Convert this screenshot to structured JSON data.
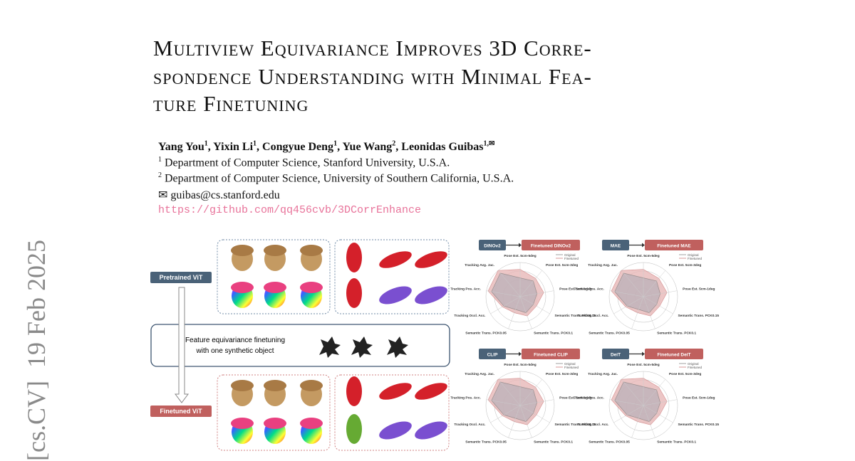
{
  "side_stamp": "[cs.CV]  19 Feb 2025",
  "title_lines": [
    "Multiview Equivariance Improves 3D Corre-",
    "spondence Understanding with Minimal Fea-",
    "ture Finetuning"
  ],
  "authors": [
    {
      "name": "Yang You",
      "sup": "1"
    },
    {
      "name": "Yixin Li",
      "sup": "1"
    },
    {
      "name": "Congyue Deng",
      "sup": "1"
    },
    {
      "name": "Yue Wang",
      "sup": "2"
    },
    {
      "name": "Leonidas Guibas",
      "sup": "1,✉"
    }
  ],
  "affiliations": [
    {
      "sup": "1",
      "text": "Department of Computer Science, Stanford University, U.S.A."
    },
    {
      "sup": "2",
      "text": "Department of Computer Science, University of Southern California, U.S.A."
    }
  ],
  "email": "✉ guibas@cs.stanford.edu",
  "url": "https://github.com/qq456cvb/3DCorrEnhance",
  "figure": {
    "pretrained_label": "Pretrained ViT",
    "finetuned_label": "Finetuned ViT",
    "middle_text": [
      "Feature equivariance finetuning",
      "with one synthetic object"
    ],
    "radar_axes": [
      "Pose Est. 5cm-5deg",
      "Pose Est. 5cm-3deg",
      "Pose Est. 5cm-1deg",
      "Semantic Trans. PCK0.15",
      "Semantic Trans. PCK0.1",
      "Semantic Trans. PCK0.05",
      "Tracking Occl. Acc.",
      "Tracking Pos. Acc.",
      "Tracking Avg. Jac."
    ],
    "legend": [
      "Original",
      "Finetuned"
    ],
    "panels": [
      {
        "model": "DINOv2",
        "finetuned": "Finetuned DINOv2"
      },
      {
        "model": "MAE",
        "finetuned": "Finetuned MAE"
      },
      {
        "model": "CLIP",
        "finetuned": "Finetuned CLIP"
      },
      {
        "model": "DeiT",
        "finetuned": "Finetuned DeiT"
      }
    ]
  }
}
